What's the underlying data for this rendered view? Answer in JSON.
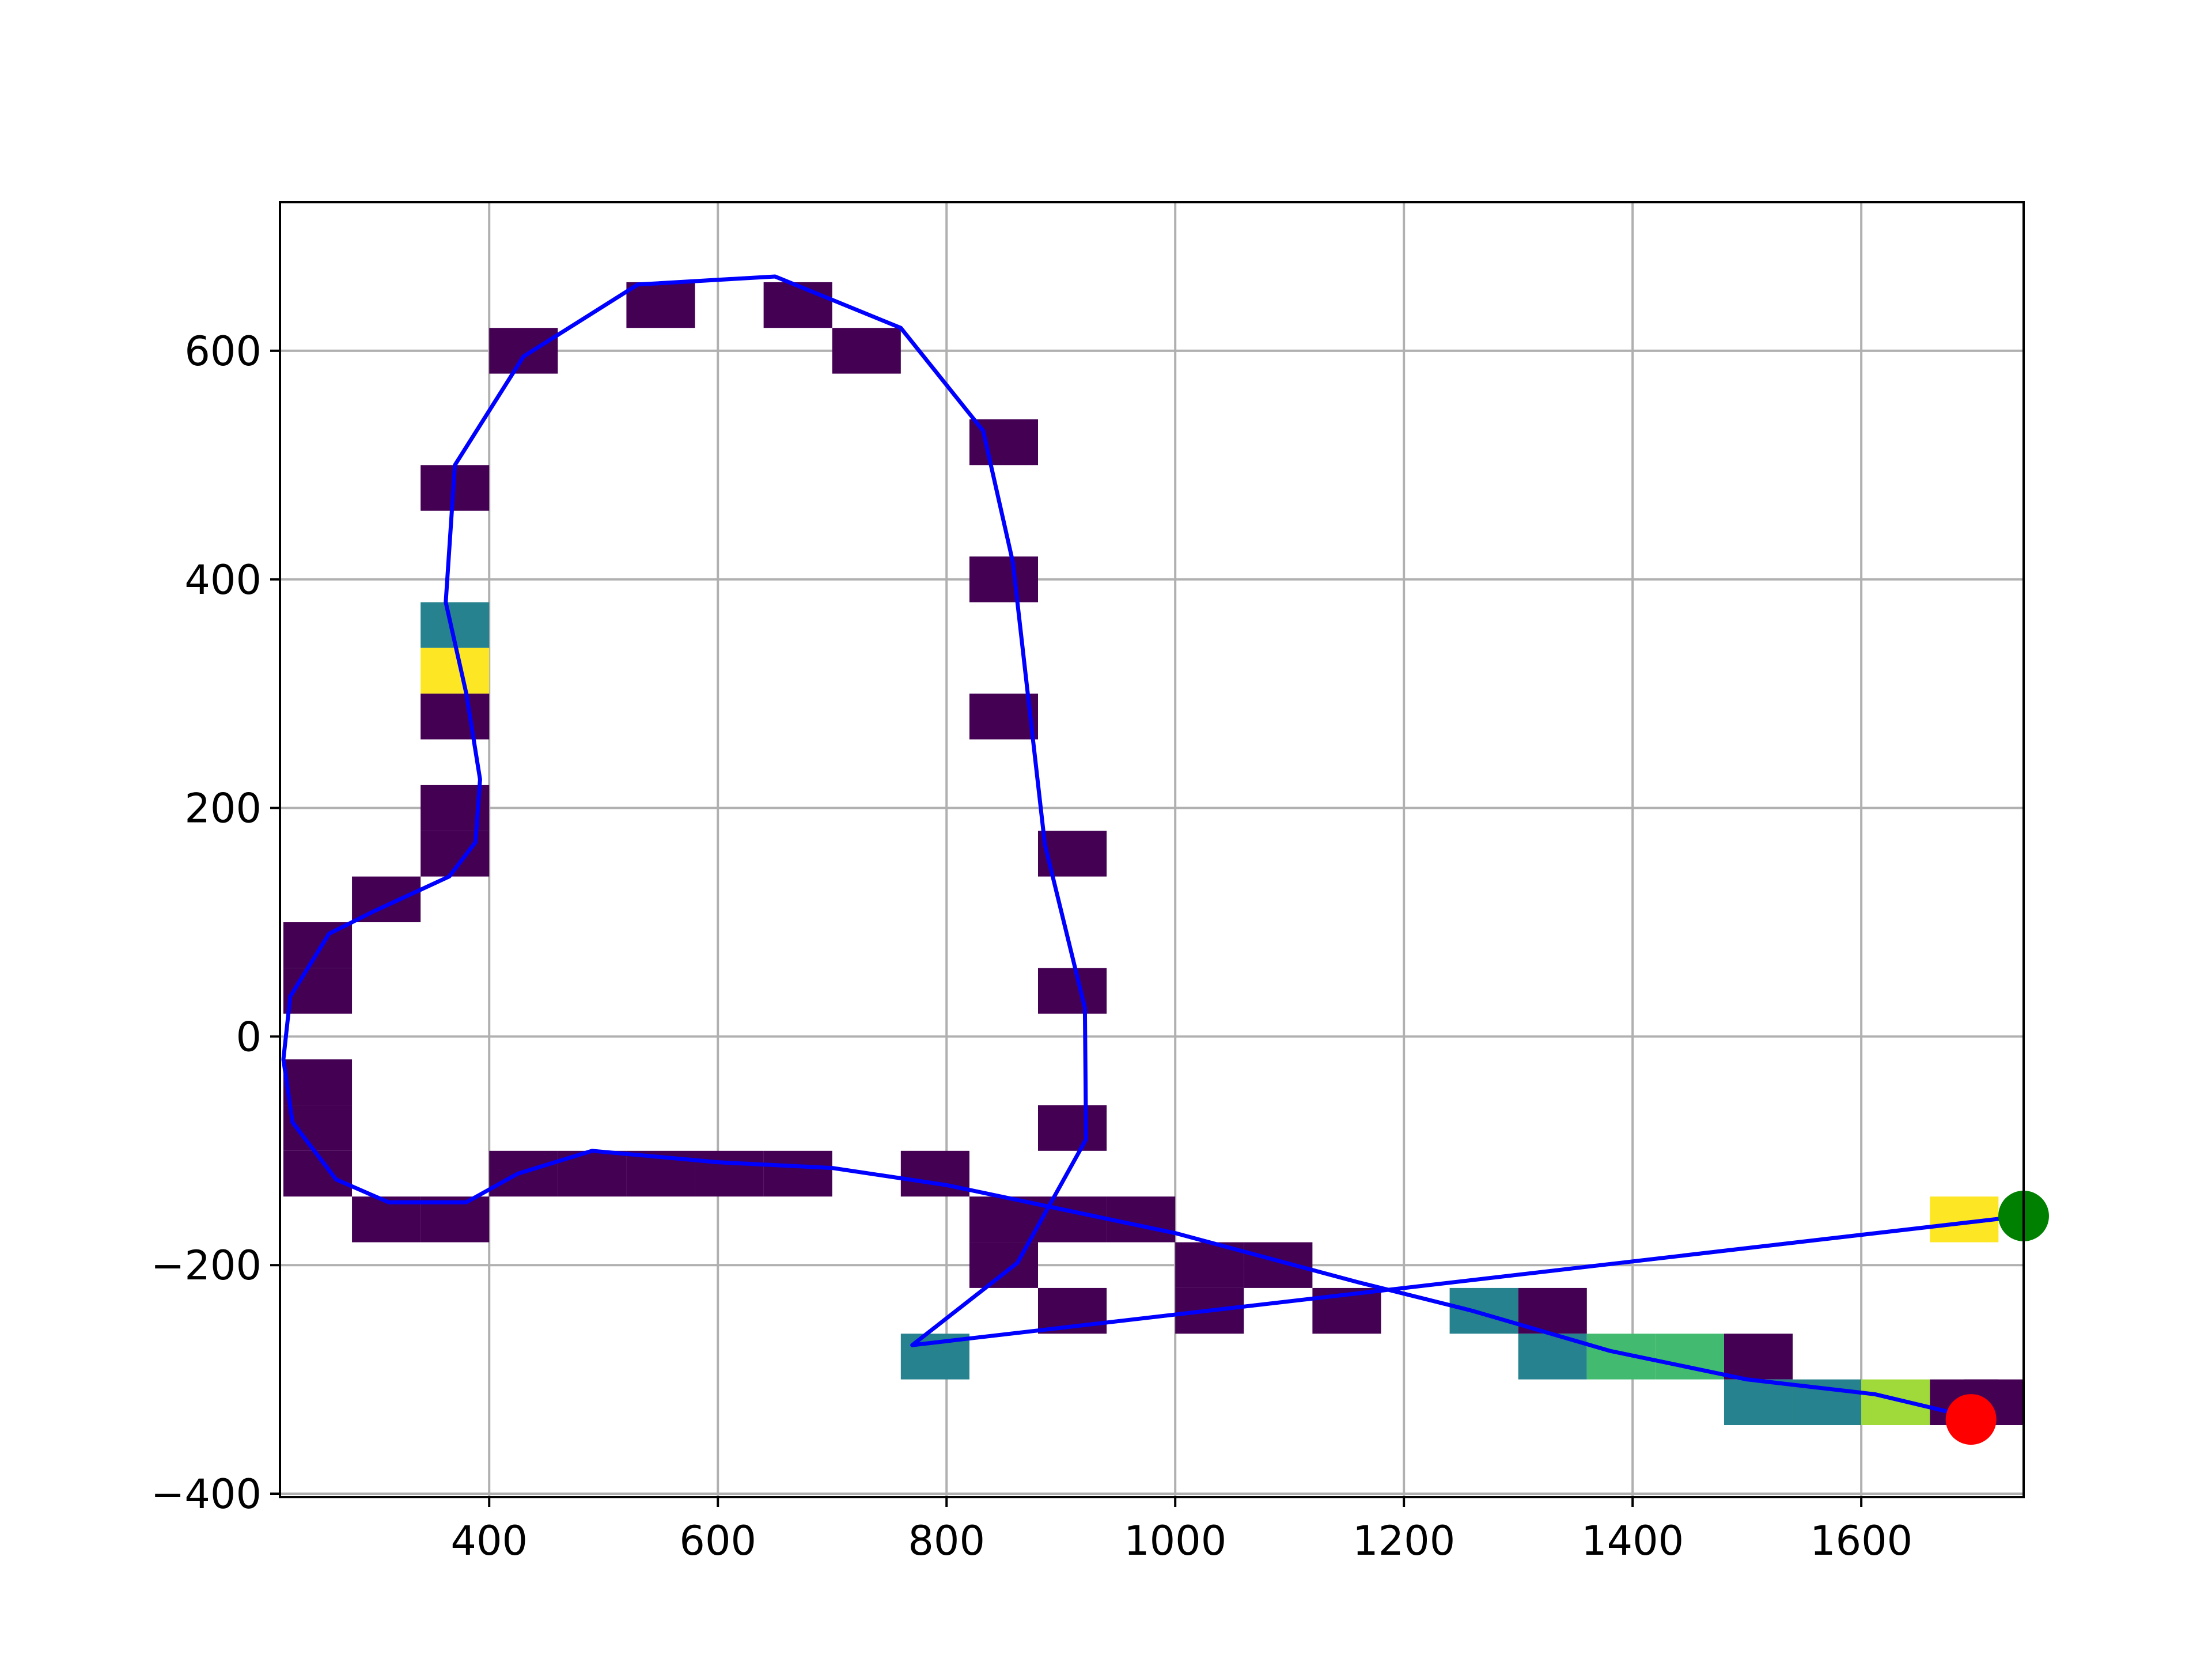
{
  "chart_data": {
    "type": "heatmap",
    "title": "",
    "xlabel": "",
    "ylabel": "",
    "xlim": [
      217,
      1742
    ],
    "ylim": [
      -403,
      730
    ],
    "grid": true,
    "x_ticks": [
      400,
      600,
      800,
      1000,
      1200,
      1400,
      1600
    ],
    "y_ticks": [
      -400,
      -200,
      0,
      200,
      400,
      600
    ],
    "x_tick_labels": [
      "400",
      "600",
      "800",
      "1000",
      "1200",
      "1400",
      "1600"
    ],
    "y_tick_labels": [
      "−400",
      "−200",
      "0",
      "200",
      "400",
      "600"
    ],
    "colormap": "viridis",
    "cell_size": [
      60,
      40
    ],
    "cells": [
      {
        "x": 430,
        "y": 600,
        "level": 0.0
      },
      {
        "x": 550,
        "y": 640,
        "level": 0.0
      },
      {
        "x": 670,
        "y": 640,
        "level": 0.0
      },
      {
        "x": 730,
        "y": 600,
        "level": 0.0
      },
      {
        "x": 370,
        "y": 480,
        "level": 0.0
      },
      {
        "x": 850,
        "y": 520,
        "level": 0.0
      },
      {
        "x": 850,
        "y": 400,
        "level": 0.0
      },
      {
        "x": 370,
        "y": 360,
        "level": 0.45
      },
      {
        "x": 370,
        "y": 320,
        "level": 1.0
      },
      {
        "x": 370,
        "y": 280,
        "level": 0.0
      },
      {
        "x": 850,
        "y": 280,
        "level": 0.0
      },
      {
        "x": 370,
        "y": 200,
        "level": 0.0
      },
      {
        "x": 370,
        "y": 160,
        "level": 0.0
      },
      {
        "x": 910,
        "y": 160,
        "level": 0.0
      },
      {
        "x": 310,
        "y": 120,
        "level": 0.0
      },
      {
        "x": 250,
        "y": 80,
        "level": 0.0
      },
      {
        "x": 250,
        "y": 40,
        "level": 0.0
      },
      {
        "x": 910,
        "y": 40,
        "level": 0.0
      },
      {
        "x": 250,
        "y": -40,
        "level": 0.0
      },
      {
        "x": 250,
        "y": -80,
        "level": 0.0
      },
      {
        "x": 910,
        "y": -80,
        "level": 0.0
      },
      {
        "x": 250,
        "y": -120,
        "level": 0.0
      },
      {
        "x": 430,
        "y": -120,
        "level": 0.0
      },
      {
        "x": 490,
        "y": -120,
        "level": 0.0
      },
      {
        "x": 550,
        "y": -120,
        "level": 0.0
      },
      {
        "x": 610,
        "y": -120,
        "level": 0.0
      },
      {
        "x": 670,
        "y": -120,
        "level": 0.0
      },
      {
        "x": 790,
        "y": -120,
        "level": 0.0
      },
      {
        "x": 310,
        "y": -160,
        "level": 0.0
      },
      {
        "x": 370,
        "y": -160,
        "level": 0.0
      },
      {
        "x": 850,
        "y": -160,
        "level": 0.0
      },
      {
        "x": 910,
        "y": -160,
        "level": 0.0
      },
      {
        "x": 970,
        "y": -160,
        "level": 0.0
      },
      {
        "x": 1690,
        "y": -160,
        "level": 1.0
      },
      {
        "x": 850,
        "y": -200,
        "level": 0.0
      },
      {
        "x": 1030,
        "y": -200,
        "level": 0.0
      },
      {
        "x": 1090,
        "y": -200,
        "level": 0.0
      },
      {
        "x": 910,
        "y": -240,
        "level": 0.0
      },
      {
        "x": 1030,
        "y": -240,
        "level": 0.0
      },
      {
        "x": 1150,
        "y": -240,
        "level": 0.0
      },
      {
        "x": 1270,
        "y": -240,
        "level": 0.45
      },
      {
        "x": 1330,
        "y": -240,
        "level": 0.0
      },
      {
        "x": 790,
        "y": -280,
        "level": 0.45
      },
      {
        "x": 1330,
        "y": -280,
        "level": 0.45
      },
      {
        "x": 1390,
        "y": -280,
        "level": 0.72
      },
      {
        "x": 1450,
        "y": -280,
        "level": 0.72
      },
      {
        "x": 1510,
        "y": -280,
        "level": 0.0
      },
      {
        "x": 1510,
        "y": -320,
        "level": 0.45
      },
      {
        "x": 1570,
        "y": -320,
        "level": 0.45
      },
      {
        "x": 1630,
        "y": -320,
        "level": 0.88
      },
      {
        "x": 1690,
        "y": -320,
        "level": 0.0
      },
      {
        "x": 1720,
        "y": -320,
        "level": 0.0
      }
    ],
    "series": [
      {
        "color": "#0000ff",
        "x": [
          1742,
          770,
          862,
          922,
          921,
          886,
          858,
          832,
          760,
          650,
          530,
          430,
          370,
          362,
          380,
          392,
          388,
          365,
          300,
          260,
          226,
          220,
          228,
          266,
          312,
          380,
          425,
          490,
          600,
          700,
          800,
          1000,
          1160,
          1260,
          1380,
          1500,
          1612,
          1696
        ],
        "y": [
          -157,
          -270,
          -198,
          -90,
          25,
          168,
          415,
          530,
          620,
          665,
          658,
          595,
          500,
          380,
          300,
          225,
          170,
          140,
          110,
          90,
          35,
          -20,
          -75,
          -125,
          -145,
          -145,
          -120,
          -100,
          -110,
          -115,
          -130,
          -172,
          -215,
          -240,
          -275,
          -300,
          -313,
          -333
        ]
      }
    ],
    "markers": [
      {
        "x": 1742,
        "y": -157,
        "color": "#008000"
      },
      {
        "x": 1696,
        "y": -335,
        "color": "#ff0000"
      }
    ]
  }
}
